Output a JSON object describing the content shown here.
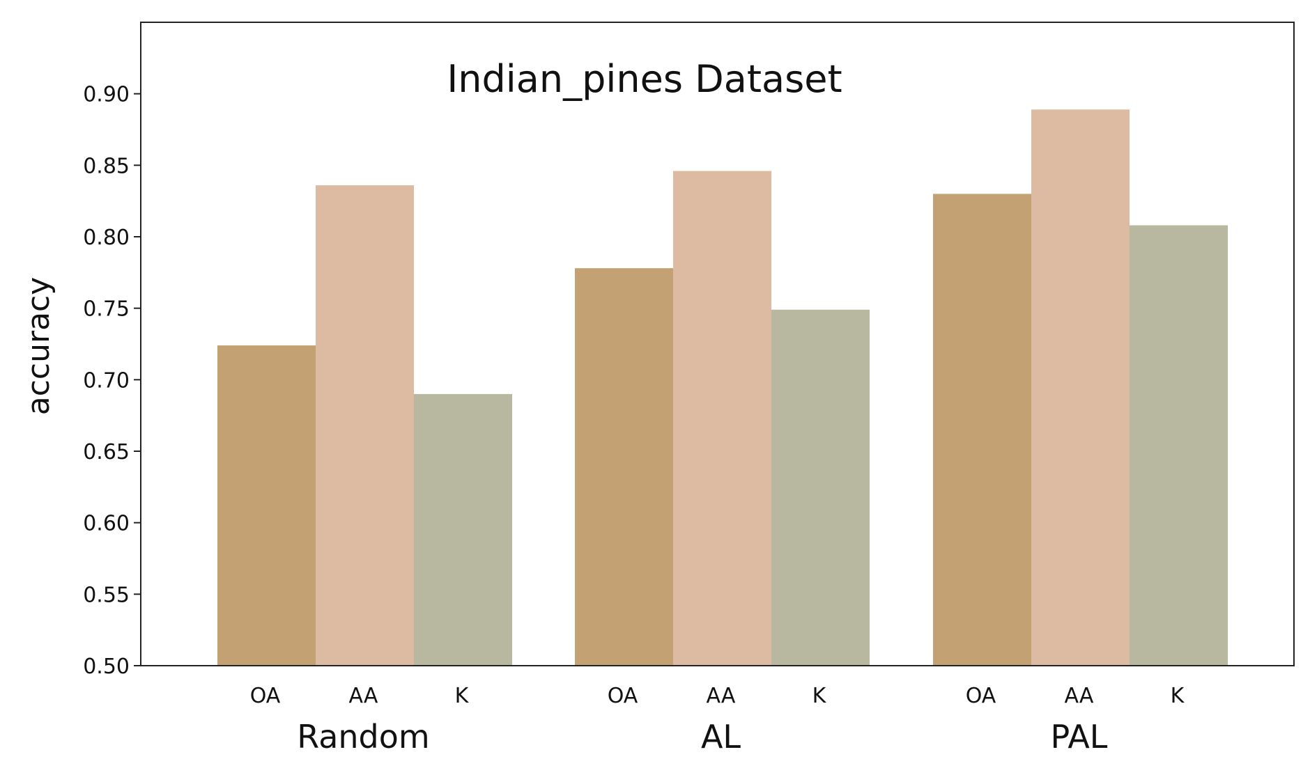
{
  "chart_data": {
    "type": "bar",
    "title": "Indian_pines Dataset",
    "ylabel": "accuracy",
    "xlabel": "",
    "ylim": [
      0.5,
      0.95
    ],
    "yticks": [
      "0.50",
      "0.55",
      "0.60",
      "0.65",
      "0.70",
      "0.75",
      "0.80",
      "0.85",
      "0.90"
    ],
    "categories": [
      "Random",
      "AL",
      "PAL"
    ],
    "metrics": [
      "OA",
      "AA",
      "K"
    ],
    "series": [
      {
        "name": "OA",
        "color": "#c4a173",
        "values": [
          0.724,
          0.778,
          0.83
        ]
      },
      {
        "name": "AA",
        "color": "#ddbaa2",
        "values": [
          0.836,
          0.846,
          0.889
        ]
      },
      {
        "name": "K",
        "color": "#b8b7a0",
        "values": [
          0.69,
          0.749,
          0.808
        ]
      }
    ],
    "grid": false,
    "legend": "none"
  }
}
